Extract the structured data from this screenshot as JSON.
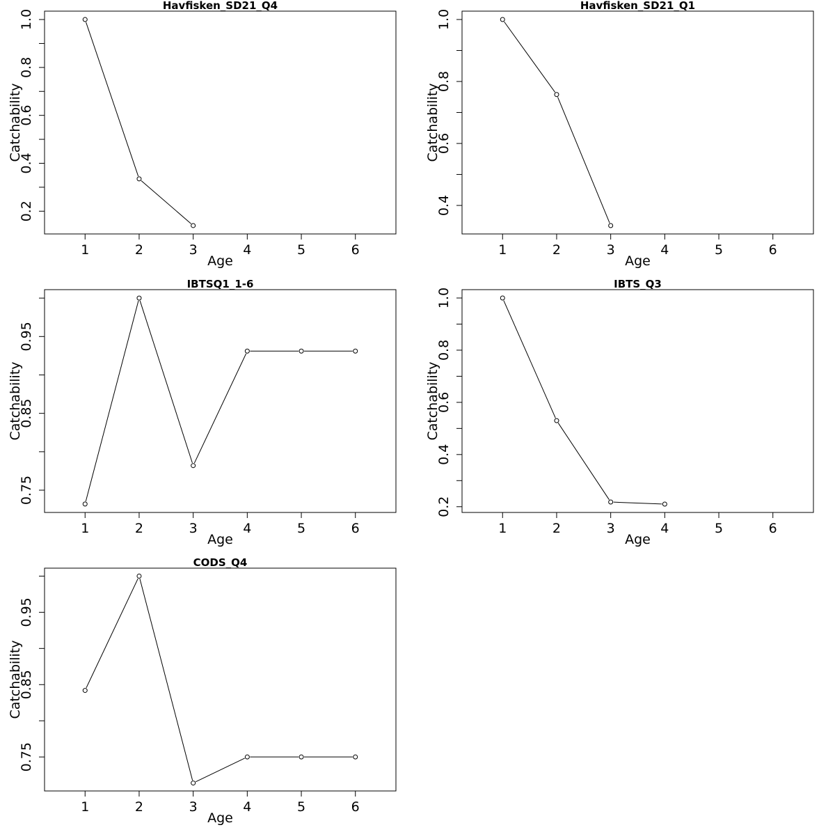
{
  "chart_data": [
    {
      "type": "line",
      "title": "Havfisken_SD21_Q4",
      "xlabel": "Age",
      "ylabel": "Catchability",
      "x": [
        1,
        2,
        3
      ],
      "y": [
        1.0,
        0.335,
        0.14
      ],
      "xlim": [
        0.25,
        6.75
      ],
      "ylim": [
        0.105,
        1.035
      ],
      "xticks": [
        "1",
        "2",
        "3",
        "4",
        "5",
        "6"
      ],
      "yticks": [
        {
          "value": 0.2,
          "label": "0.2"
        },
        {
          "value": 0.3,
          "label": ""
        },
        {
          "value": 0.4,
          "label": "0.4"
        },
        {
          "value": 0.5,
          "label": ""
        },
        {
          "value": 0.6,
          "label": "0.6"
        },
        {
          "value": 0.7,
          "label": ""
        },
        {
          "value": 0.8,
          "label": "0.8"
        },
        {
          "value": 0.9,
          "label": ""
        },
        {
          "value": 1.0,
          "label": "1.0"
        }
      ],
      "grid": false
    },
    {
      "type": "line",
      "title": "Havfisken_SD21_Q1",
      "xlabel": "Age",
      "ylabel": "Catchability",
      "x": [
        1,
        2,
        3
      ],
      "y": [
        1.0,
        0.758,
        0.335
      ],
      "xlim": [
        0.25,
        6.75
      ],
      "ylim": [
        0.308,
        1.027
      ],
      "xticks": [
        "1",
        "2",
        "3",
        "4",
        "5",
        "6"
      ],
      "yticks": [
        {
          "value": 0.4,
          "label": "0.4"
        },
        {
          "value": 0.5,
          "label": ""
        },
        {
          "value": 0.6,
          "label": "0.6"
        },
        {
          "value": 0.7,
          "label": ""
        },
        {
          "value": 0.8,
          "label": "0.8"
        },
        {
          "value": 0.9,
          "label": ""
        },
        {
          "value": 1.0,
          "label": "1.0"
        }
      ],
      "grid": false
    },
    {
      "type": "line",
      "title": "IBTSQ1_1-6",
      "xlabel": "Age",
      "ylabel": "Catchability",
      "x": [
        1,
        2,
        3,
        4,
        5,
        6
      ],
      "y": [
        0.732,
        1.0,
        0.782,
        0.931,
        0.931,
        0.931
      ],
      "xlim": [
        0.25,
        6.75
      ],
      "ylim": [
        0.721,
        1.011
      ],
      "xticks": [
        "1",
        "2",
        "3",
        "4",
        "5",
        "6"
      ],
      "yticks": [
        {
          "value": 0.75,
          "label": "0.75"
        },
        {
          "value": 0.8,
          "label": ""
        },
        {
          "value": 0.85,
          "label": "0.85"
        },
        {
          "value": 0.9,
          "label": ""
        },
        {
          "value": 0.95,
          "label": "0.95"
        },
        {
          "value": 1.0,
          "label": ""
        }
      ],
      "grid": false
    },
    {
      "type": "line",
      "title": "IBTS_Q3",
      "xlabel": "Age",
      "ylabel": "Catchability",
      "x": [
        1,
        2,
        3,
        4
      ],
      "y": [
        1.0,
        0.53,
        0.218,
        0.21
      ],
      "xlim": [
        0.25,
        6.75
      ],
      "ylim": [
        0.178,
        1.032
      ],
      "xticks": [
        "1",
        "2",
        "3",
        "4",
        "5",
        "6"
      ],
      "yticks": [
        {
          "value": 0.2,
          "label": "0.2"
        },
        {
          "value": 0.3,
          "label": ""
        },
        {
          "value": 0.4,
          "label": "0.4"
        },
        {
          "value": 0.5,
          "label": ""
        },
        {
          "value": 0.6,
          "label": "0.6"
        },
        {
          "value": 0.7,
          "label": ""
        },
        {
          "value": 0.8,
          "label": "0.8"
        },
        {
          "value": 0.9,
          "label": ""
        },
        {
          "value": 1.0,
          "label": "1.0"
        }
      ],
      "grid": false
    },
    {
      "type": "line",
      "title": "CODS_Q4",
      "xlabel": "Age",
      "ylabel": "Catchability",
      "x": [
        1,
        2,
        3,
        4,
        5,
        6
      ],
      "y": [
        0.842,
        1.0,
        0.714,
        0.75,
        0.75,
        0.75
      ],
      "xlim": [
        0.25,
        6.75
      ],
      "ylim": [
        0.703,
        1.011
      ],
      "xticks": [
        "1",
        "2",
        "3",
        "4",
        "5",
        "6"
      ],
      "yticks": [
        {
          "value": 0.75,
          "label": "0.75"
        },
        {
          "value": 0.8,
          "label": ""
        },
        {
          "value": 0.85,
          "label": "0.85"
        },
        {
          "value": 0.9,
          "label": ""
        },
        {
          "value": 0.95,
          "label": "0.95"
        },
        {
          "value": 1.0,
          "label": ""
        }
      ],
      "grid": false
    }
  ]
}
